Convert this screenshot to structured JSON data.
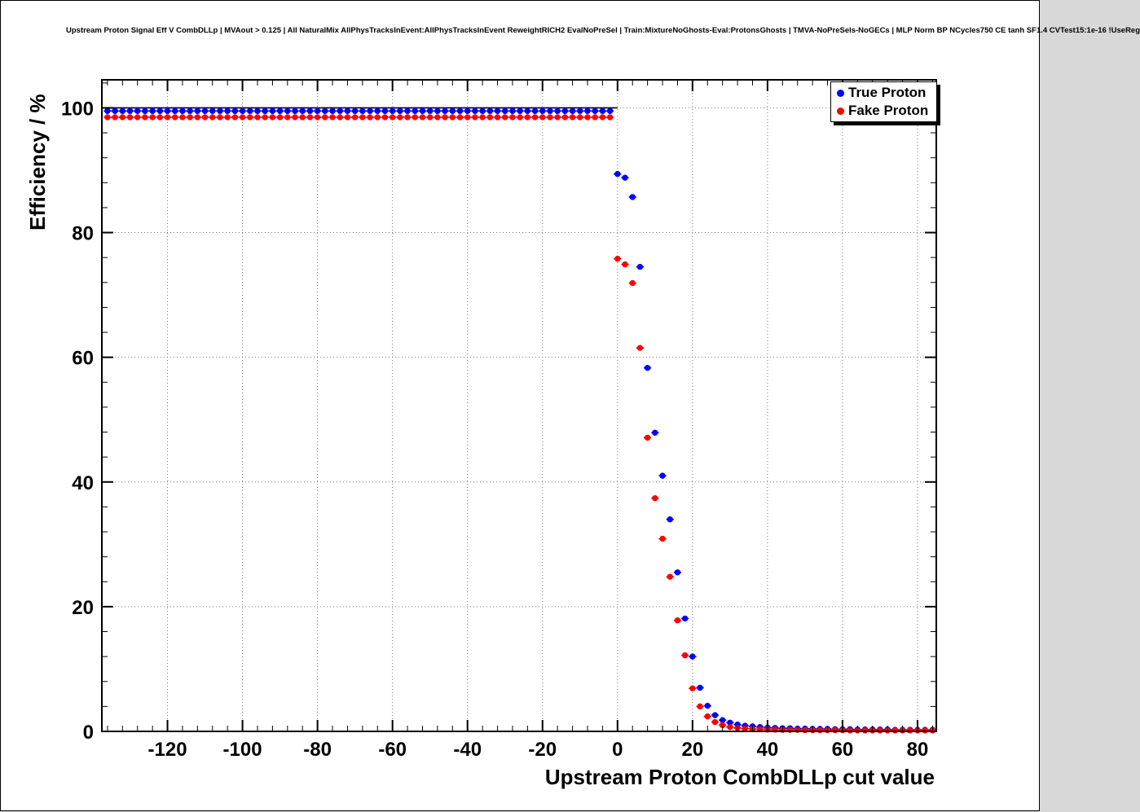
{
  "header": {
    "title": "Upstream Proton Signal Eff V CombDLLp | MVAout > 0.125 | All NaturalMix AllPhysTracksInEvent:AllPhysTracksInEvent ReweightRICH2 EvalNoPreSel | Train:MixtureNoGhosts-Eval:ProtonsGhosts | TMVA-NoPreSels-NoGECs | MLP Norm BP NCycles750 CE tanh SF1.4 CVTest15:1e-16 !UseReg"
  },
  "legend": {
    "entries": [
      {
        "label": "True Proton",
        "color": "#0000ff"
      },
      {
        "label": "Fake Proton",
        "color": "#ff0000"
      }
    ]
  },
  "colors": {
    "frame": "#000000",
    "grid": "#777777",
    "true_proton": "#0000ff",
    "fake_proton": "#ff0000"
  },
  "chart_data": {
    "type": "scatter",
    "title": "Upstream Proton Signal Eff V CombDLLp | MVAout > 0.125 | All NaturalMix AllPhysTracksInEvent:AllPhysTracksInEvent ReweightRICH2 EvalNoPreSel | Train:MixtureNoGhosts-Eval:ProtonsGhosts | TMVA-NoPreSels-NoGECs | MLP Norm BP NCycles750 CE tanh SF1.4 CVTest15:1e-16 !UseReg",
    "xlabel": "Upstream Proton CombDLLp cut value",
    "ylabel": "Efficiency / %",
    "xlim": [
      -137.5,
      85
    ],
    "ylim": [
      0,
      104.5
    ],
    "xticks": [
      -120,
      -100,
      -80,
      -60,
      -40,
      -20,
      0,
      20,
      40,
      60,
      80
    ],
    "yticks": [
      0,
      20,
      40,
      60,
      80,
      100
    ],
    "x_minor_step": 4,
    "y_minor_step": 4,
    "grid": "dotted",
    "legend_position": "top-right",
    "x_error": 1.0,
    "reference_line": {
      "y": 100,
      "x_from": -137.5,
      "x_to": 0,
      "color": "#000000"
    },
    "series": [
      {
        "name": "True Proton",
        "color": "#0000ff",
        "points": [
          [
            -136,
            99.5
          ],
          [
            -134,
            99.5
          ],
          [
            -132,
            99.5
          ],
          [
            -130,
            99.5
          ],
          [
            -128,
            99.5
          ],
          [
            -126,
            99.5
          ],
          [
            -124,
            99.5
          ],
          [
            -122,
            99.5
          ],
          [
            -120,
            99.5
          ],
          [
            -118,
            99.5
          ],
          [
            -116,
            99.5
          ],
          [
            -114,
            99.5
          ],
          [
            -112,
            99.5
          ],
          [
            -110,
            99.5
          ],
          [
            -108,
            99.5
          ],
          [
            -106,
            99.5
          ],
          [
            -104,
            99.5
          ],
          [
            -102,
            99.5
          ],
          [
            -100,
            99.5
          ],
          [
            -98,
            99.5
          ],
          [
            -96,
            99.5
          ],
          [
            -94,
            99.5
          ],
          [
            -92,
            99.5
          ],
          [
            -90,
            99.5
          ],
          [
            -88,
            99.5
          ],
          [
            -86,
            99.5
          ],
          [
            -84,
            99.5
          ],
          [
            -82,
            99.5
          ],
          [
            -80,
            99.5
          ],
          [
            -78,
            99.5
          ],
          [
            -76,
            99.5
          ],
          [
            -74,
            99.5
          ],
          [
            -72,
            99.5
          ],
          [
            -70,
            99.5
          ],
          [
            -68,
            99.5
          ],
          [
            -66,
            99.5
          ],
          [
            -64,
            99.5
          ],
          [
            -62,
            99.5
          ],
          [
            -60,
            99.5
          ],
          [
            -58,
            99.5
          ],
          [
            -56,
            99.5
          ],
          [
            -54,
            99.5
          ],
          [
            -52,
            99.5
          ],
          [
            -50,
            99.5
          ],
          [
            -48,
            99.5
          ],
          [
            -46,
            99.5
          ],
          [
            -44,
            99.5
          ],
          [
            -42,
            99.5
          ],
          [
            -40,
            99.5
          ],
          [
            -38,
            99.5
          ],
          [
            -36,
            99.5
          ],
          [
            -34,
            99.5
          ],
          [
            -32,
            99.5
          ],
          [
            -30,
            99.5
          ],
          [
            -28,
            99.5
          ],
          [
            -26,
            99.5
          ],
          [
            -24,
            99.5
          ],
          [
            -22,
            99.5
          ],
          [
            -20,
            99.5
          ],
          [
            -18,
            99.5
          ],
          [
            -16,
            99.5
          ],
          [
            -14,
            99.5
          ],
          [
            -12,
            99.5
          ],
          [
            -10,
            99.5
          ],
          [
            -8,
            99.5
          ],
          [
            -6,
            99.5
          ],
          [
            -4,
            99.5
          ],
          [
            -2,
            99.5
          ],
          [
            0,
            89.4
          ],
          [
            2,
            88.8
          ],
          [
            4,
            85.7
          ],
          [
            6,
            74.5
          ],
          [
            8,
            58.3
          ],
          [
            10,
            47.9
          ],
          [
            12,
            41.0
          ],
          [
            14,
            34.0
          ],
          [
            16,
            25.5
          ],
          [
            18,
            18.1
          ],
          [
            20,
            12.0
          ],
          [
            22,
            7.0
          ],
          [
            24,
            4.1
          ],
          [
            26,
            2.6
          ],
          [
            28,
            1.8
          ],
          [
            30,
            1.4
          ],
          [
            32,
            1.1
          ],
          [
            34,
            0.9
          ],
          [
            36,
            0.8
          ],
          [
            38,
            0.7
          ],
          [
            40,
            0.6
          ],
          [
            42,
            0.55
          ],
          [
            44,
            0.5
          ],
          [
            46,
            0.5
          ],
          [
            48,
            0.45
          ],
          [
            50,
            0.45
          ],
          [
            52,
            0.4
          ],
          [
            54,
            0.4
          ],
          [
            56,
            0.4
          ],
          [
            58,
            0.35
          ],
          [
            60,
            0.35
          ],
          [
            62,
            0.35
          ],
          [
            64,
            0.3
          ],
          [
            66,
            0.3
          ],
          [
            68,
            0.3
          ],
          [
            70,
            0.3
          ],
          [
            72,
            0.3
          ],
          [
            74,
            0.25
          ],
          [
            76,
            0.25
          ],
          [
            78,
            0.25
          ],
          [
            80,
            0.25
          ],
          [
            82,
            0.25
          ],
          [
            84,
            0.25
          ]
        ]
      },
      {
        "name": "Fake Proton",
        "color": "#ff0000",
        "points": [
          [
            -136,
            98.5
          ],
          [
            -134,
            98.5
          ],
          [
            -132,
            98.5
          ],
          [
            -130,
            98.5
          ],
          [
            -128,
            98.5
          ],
          [
            -126,
            98.5
          ],
          [
            -124,
            98.5
          ],
          [
            -122,
            98.5
          ],
          [
            -120,
            98.5
          ],
          [
            -118,
            98.5
          ],
          [
            -116,
            98.5
          ],
          [
            -114,
            98.5
          ],
          [
            -112,
            98.5
          ],
          [
            -110,
            98.5
          ],
          [
            -108,
            98.5
          ],
          [
            -106,
            98.5
          ],
          [
            -104,
            98.5
          ],
          [
            -102,
            98.5
          ],
          [
            -100,
            98.5
          ],
          [
            -98,
            98.5
          ],
          [
            -96,
            98.5
          ],
          [
            -94,
            98.5
          ],
          [
            -92,
            98.5
          ],
          [
            -90,
            98.5
          ],
          [
            -88,
            98.5
          ],
          [
            -86,
            98.5
          ],
          [
            -84,
            98.5
          ],
          [
            -82,
            98.5
          ],
          [
            -80,
            98.5
          ],
          [
            -78,
            98.5
          ],
          [
            -76,
            98.5
          ],
          [
            -74,
            98.5
          ],
          [
            -72,
            98.5
          ],
          [
            -70,
            98.5
          ],
          [
            -68,
            98.5
          ],
          [
            -66,
            98.5
          ],
          [
            -64,
            98.5
          ],
          [
            -62,
            98.5
          ],
          [
            -60,
            98.5
          ],
          [
            -58,
            98.5
          ],
          [
            -56,
            98.5
          ],
          [
            -54,
            98.5
          ],
          [
            -52,
            98.5
          ],
          [
            -50,
            98.5
          ],
          [
            -48,
            98.5
          ],
          [
            -46,
            98.5
          ],
          [
            -44,
            98.5
          ],
          [
            -42,
            98.5
          ],
          [
            -40,
            98.5
          ],
          [
            -38,
            98.5
          ],
          [
            -36,
            98.5
          ],
          [
            -34,
            98.5
          ],
          [
            -32,
            98.5
          ],
          [
            -30,
            98.5
          ],
          [
            -28,
            98.5
          ],
          [
            -26,
            98.5
          ],
          [
            -24,
            98.5
          ],
          [
            -22,
            98.5
          ],
          [
            -20,
            98.5
          ],
          [
            -18,
            98.5
          ],
          [
            -16,
            98.5
          ],
          [
            -14,
            98.5
          ],
          [
            -12,
            98.5
          ],
          [
            -10,
            98.5
          ],
          [
            -8,
            98.5
          ],
          [
            -6,
            98.5
          ],
          [
            -4,
            98.5
          ],
          [
            -2,
            98.5
          ],
          [
            0,
            75.8
          ],
          [
            2,
            74.9
          ],
          [
            4,
            71.9
          ],
          [
            6,
            61.5
          ],
          [
            8,
            47.1
          ],
          [
            10,
            37.4
          ],
          [
            12,
            30.9
          ],
          [
            14,
            24.8
          ],
          [
            16,
            17.8
          ],
          [
            18,
            12.2
          ],
          [
            20,
            6.9
          ],
          [
            22,
            4.0
          ],
          [
            24,
            2.4
          ],
          [
            26,
            1.5
          ],
          [
            28,
            1.0
          ],
          [
            30,
            0.7
          ],
          [
            32,
            0.55
          ],
          [
            34,
            0.45
          ],
          [
            36,
            0.4
          ],
          [
            38,
            0.35
          ],
          [
            40,
            0.3
          ],
          [
            42,
            0.3
          ],
          [
            44,
            0.25
          ],
          [
            46,
            0.25
          ],
          [
            48,
            0.25
          ],
          [
            50,
            0.2
          ],
          [
            52,
            0.2
          ],
          [
            54,
            0.2
          ],
          [
            56,
            0.2
          ],
          [
            58,
            0.2
          ],
          [
            60,
            0.2
          ],
          [
            62,
            0.15
          ],
          [
            64,
            0.15
          ],
          [
            66,
            0.15
          ],
          [
            68,
            0.15
          ],
          [
            70,
            0.15
          ],
          [
            72,
            0.15
          ],
          [
            74,
            0.15
          ],
          [
            76,
            0.15
          ],
          [
            78,
            0.15
          ],
          [
            80,
            0.15
          ],
          [
            82,
            0.15
          ],
          [
            84,
            0.15
          ]
        ]
      }
    ]
  }
}
